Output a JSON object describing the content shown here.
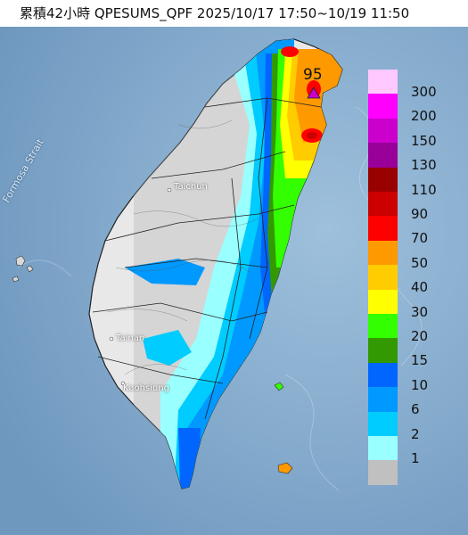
{
  "title": "累積42小時 QPESUMS_QPF 2025/10/17 17:50~10/19 11:50",
  "max_value": "95",
  "map_labels": {
    "strait": "Formosa Strait",
    "taichung": "Taichun",
    "tainan": "Tainan",
    "kaohsiung": "Kaohsiung"
  },
  "legend": [
    {
      "label": "300",
      "color": "#ffc8ff"
    },
    {
      "label": "200",
      "color": "#ff00ff"
    },
    {
      "label": "150",
      "color": "#cc00cc"
    },
    {
      "label": "130",
      "color": "#99009a"
    },
    {
      "label": "110",
      "color": "#990000"
    },
    {
      "label": "90",
      "color": "#cc0000"
    },
    {
      "label": "70",
      "color": "#ff0000"
    },
    {
      "label": "50",
      "color": "#ff9900"
    },
    {
      "label": "40",
      "color": "#ffcc00"
    },
    {
      "label": "30",
      "color": "#ffff00"
    },
    {
      "label": "20",
      "color": "#33ff00"
    },
    {
      "label": "15",
      "color": "#339900"
    },
    {
      "label": "10",
      "color": "#0066ff"
    },
    {
      "label": "6",
      "color": "#0099ff"
    },
    {
      "label": "2",
      "color": "#00ccff"
    },
    {
      "label": "1",
      "color": "#99ffff"
    },
    {
      "label": "",
      "color": "#c0c0c0"
    }
  ]
}
